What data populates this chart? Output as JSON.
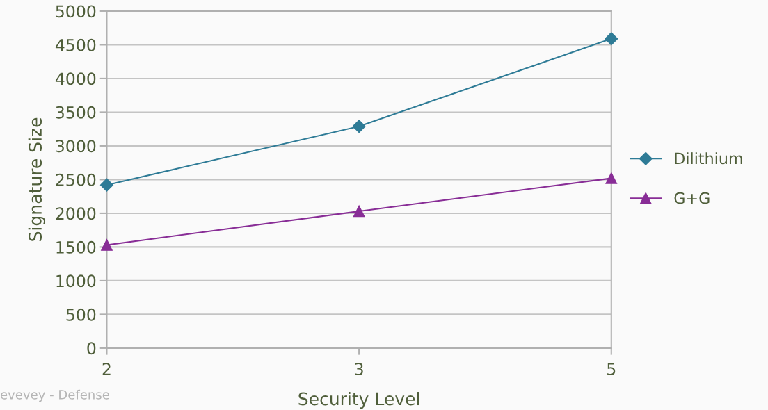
{
  "chart_data": {
    "type": "line",
    "xlabel": "Security Level",
    "ylabel": "Signature Size",
    "categories": [
      "2",
      "3",
      "5"
    ],
    "series": [
      {
        "name": "Dilithium",
        "color": "#2e7b96",
        "marker": "diamond",
        "values": [
          2420,
          3290,
          4590
        ]
      },
      {
        "name": "G+G",
        "color": "#882d96",
        "marker": "triangle",
        "values": [
          1530,
          2030,
          2520
        ]
      }
    ],
    "ylim": [
      0,
      5000
    ],
    "yticks": [
      0,
      500,
      1000,
      1500,
      2000,
      2500,
      3000,
      3500,
      4000,
      4500,
      5000
    ],
    "grid": "y",
    "legend": "right",
    "line_style": "solid",
    "annotations": [
      "evevey - Defense"
    ]
  }
}
